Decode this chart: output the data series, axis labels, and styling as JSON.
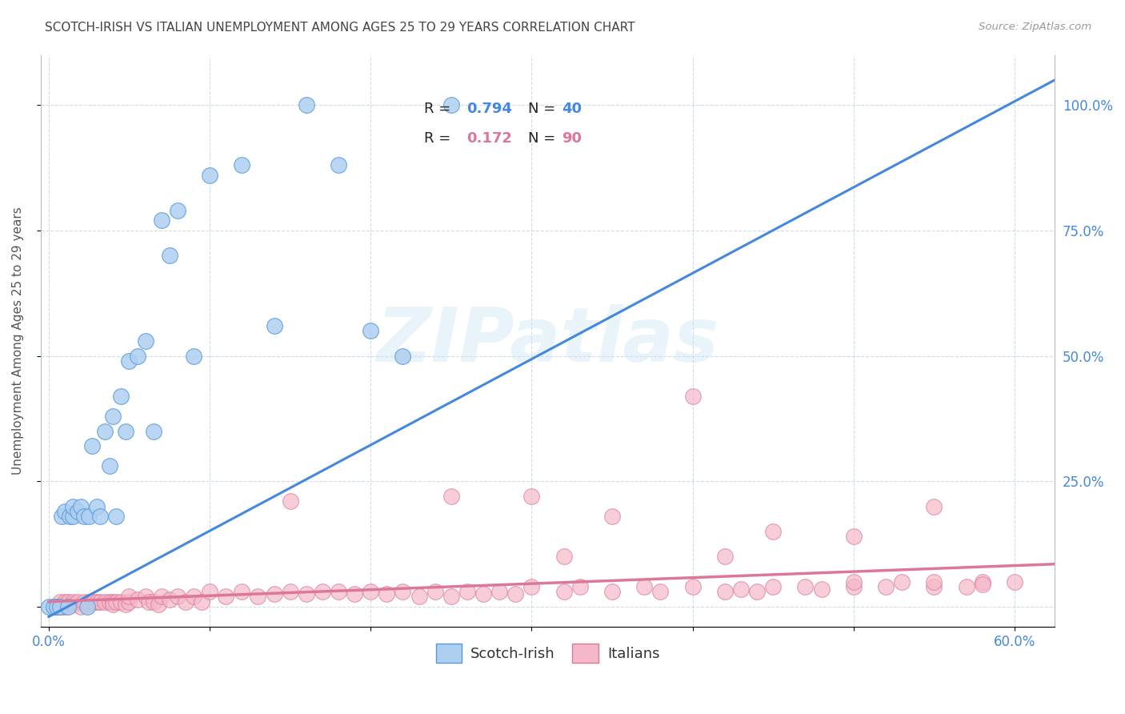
{
  "title": "SCOTCH-IRISH VS ITALIAN UNEMPLOYMENT AMONG AGES 25 TO 29 YEARS CORRELATION CHART",
  "source": "Source: ZipAtlas.com",
  "ylabel": "Unemployment Among Ages 25 to 29 years",
  "xlim_min": -0.005,
  "xlim_max": 0.625,
  "ylim_min": -0.04,
  "ylim_max": 1.1,
  "xticks": [
    0.0,
    0.1,
    0.2,
    0.3,
    0.4,
    0.5,
    0.6
  ],
  "xticklabels": [
    "0.0%",
    "",
    "",
    "",
    "",
    "",
    "60.0%"
  ],
  "yticks": [
    0.0,
    0.25,
    0.5,
    0.75,
    1.0
  ],
  "yticklabels_right": [
    "",
    "25.0%",
    "50.0%",
    "75.0%",
    "100.0%"
  ],
  "scotch_irish_R": 0.794,
  "scotch_irish_N": 40,
  "italian_R": 0.172,
  "italian_N": 90,
  "si_color": "#aecff0",
  "si_edge_color": "#5599dd",
  "si_line_color": "#4488dd",
  "it_color": "#f4b8c8",
  "it_edge_color": "#dd7799",
  "it_line_color": "#dd7799",
  "watermark": "ZIPatlas",
  "title_color": "#444444",
  "axis_tick_color": "#4488dd",
  "si_x": [
    0.0,
    0.003,
    0.005,
    0.007,
    0.008,
    0.01,
    0.012,
    0.013,
    0.015,
    0.015,
    0.018,
    0.02,
    0.022,
    0.024,
    0.025,
    0.027,
    0.03,
    0.032,
    0.035,
    0.038,
    0.04,
    0.042,
    0.045,
    0.048,
    0.05,
    0.055,
    0.06,
    0.065,
    0.07,
    0.075,
    0.08,
    0.09,
    0.1,
    0.12,
    0.14,
    0.16,
    0.18,
    0.2,
    0.22,
    0.25
  ],
  "si_y": [
    0.0,
    0.0,
    0.0,
    0.0,
    0.18,
    0.19,
    0.0,
    0.18,
    0.18,
    0.2,
    0.19,
    0.2,
    0.18,
    0.0,
    0.18,
    0.32,
    0.2,
    0.18,
    0.35,
    0.28,
    0.38,
    0.18,
    0.42,
    0.35,
    0.49,
    0.5,
    0.53,
    0.35,
    0.77,
    0.7,
    0.79,
    0.5,
    0.86,
    0.88,
    0.56,
    1.0,
    0.88,
    0.55,
    0.5,
    1.0
  ],
  "si_line_x0": 0.0,
  "si_line_y0": -0.02,
  "si_line_x1": 0.625,
  "si_line_y1": 1.05,
  "it_line_x0": 0.0,
  "it_line_y0": 0.01,
  "it_line_x1": 0.625,
  "it_line_y1": 0.085,
  "it_x": [
    0.003,
    0.005,
    0.007,
    0.008,
    0.01,
    0.01,
    0.012,
    0.015,
    0.015,
    0.018,
    0.02,
    0.022,
    0.025,
    0.025,
    0.028,
    0.03,
    0.032,
    0.035,
    0.038,
    0.04,
    0.04,
    0.042,
    0.045,
    0.048,
    0.05,
    0.05,
    0.055,
    0.06,
    0.062,
    0.065,
    0.068,
    0.07,
    0.075,
    0.08,
    0.085,
    0.09,
    0.095,
    0.1,
    0.11,
    0.12,
    0.13,
    0.14,
    0.15,
    0.16,
    0.17,
    0.18,
    0.19,
    0.2,
    0.21,
    0.22,
    0.23,
    0.24,
    0.25,
    0.26,
    0.27,
    0.28,
    0.29,
    0.3,
    0.32,
    0.33,
    0.35,
    0.37,
    0.38,
    0.4,
    0.42,
    0.43,
    0.44,
    0.45,
    0.47,
    0.48,
    0.5,
    0.5,
    0.52,
    0.53,
    0.55,
    0.55,
    0.57,
    0.58,
    0.58,
    0.6,
    0.15,
    0.25,
    0.35,
    0.4,
    0.45,
    0.5,
    0.3,
    0.32,
    0.42,
    0.55
  ],
  "it_y": [
    0.0,
    0.0,
    0.01,
    0.0,
    0.0,
    0.01,
    0.01,
    0.005,
    0.01,
    0.01,
    0.0,
    0.01,
    0.005,
    0.01,
    0.01,
    0.01,
    0.01,
    0.01,
    0.01,
    0.01,
    0.005,
    0.01,
    0.01,
    0.005,
    0.01,
    0.02,
    0.015,
    0.02,
    0.01,
    0.01,
    0.005,
    0.02,
    0.015,
    0.02,
    0.01,
    0.02,
    0.01,
    0.03,
    0.02,
    0.03,
    0.02,
    0.025,
    0.03,
    0.025,
    0.03,
    0.03,
    0.025,
    0.03,
    0.025,
    0.03,
    0.02,
    0.03,
    0.02,
    0.03,
    0.025,
    0.03,
    0.025,
    0.04,
    0.03,
    0.04,
    0.03,
    0.04,
    0.03,
    0.04,
    0.03,
    0.035,
    0.03,
    0.04,
    0.04,
    0.035,
    0.04,
    0.05,
    0.04,
    0.05,
    0.04,
    0.05,
    0.04,
    0.05,
    0.045,
    0.05,
    0.21,
    0.22,
    0.18,
    0.42,
    0.15,
    0.14,
    0.22,
    0.1,
    0.1,
    0.2
  ]
}
